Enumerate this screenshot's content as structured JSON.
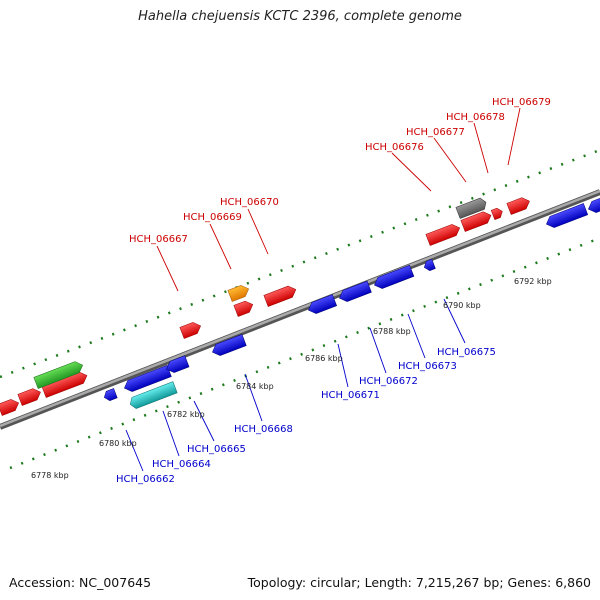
{
  "title": "Hahella chejuensis KCTC 2396, complete genome",
  "footer": {
    "accession": "Accession: NC_007645",
    "summary": "Topology: circular; Length: 7,215,267 bp; Genes: 6,860"
  },
  "scale_labels": [
    "6778 kbp",
    "6780 kbp",
    "6782 kbp",
    "6784 kbp",
    "6786 kbp",
    "6788 kbp",
    "6790 kbp",
    "6792 kbp"
  ],
  "forward_gene_labels": [
    "HCH_06667",
    "HCH_06669",
    "HCH_06670",
    "HCH_06676",
    "HCH_06677",
    "HCH_06678",
    "HCH_06679"
  ],
  "reverse_gene_labels": [
    "HCH_06662",
    "HCH_06664",
    "HCH_06665",
    "HCH_06668",
    "HCH_06671",
    "HCH_06672",
    "HCH_06673",
    "HCH_06675"
  ],
  "colors": {
    "forward_gene": "#ee1111",
    "reverse_gene": "#1111dd",
    "backbone": "#8a8a8a",
    "ticks": "#1d7a1d",
    "highlight_green": "#33bb33",
    "highlight_orange": "#ff9900",
    "highlight_cyan": "#22cccc",
    "highlight_gray": "#777777"
  }
}
